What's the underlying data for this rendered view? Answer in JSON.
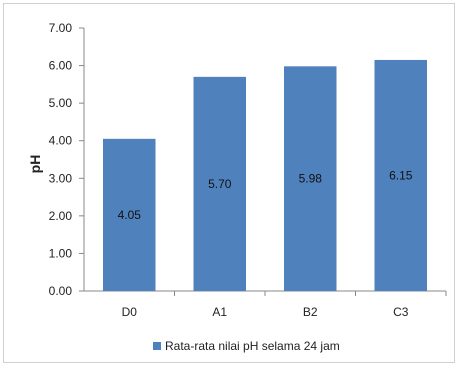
{
  "chart_data": {
    "type": "bar",
    "ylabel": "pH",
    "xlabel": "",
    "categories": [
      "D0",
      "A1",
      "B2",
      "C3"
    ],
    "series": [
      {
        "name": "Rata-rata nilai pH selama 24 jam",
        "values": [
          4.05,
          5.7,
          5.98,
          6.15
        ]
      }
    ],
    "data_labels": [
      "4.05",
      "5.70",
      "5.98",
      "6.15"
    ],
    "ylim": [
      0,
      7
    ],
    "y_ticks": [
      "0.00",
      "1.00",
      "2.00",
      "3.00",
      "4.00",
      "5.00",
      "6.00",
      "7.00"
    ],
    "grid": false,
    "legend_position": "bottom",
    "bar_color": "#4f81bd"
  }
}
